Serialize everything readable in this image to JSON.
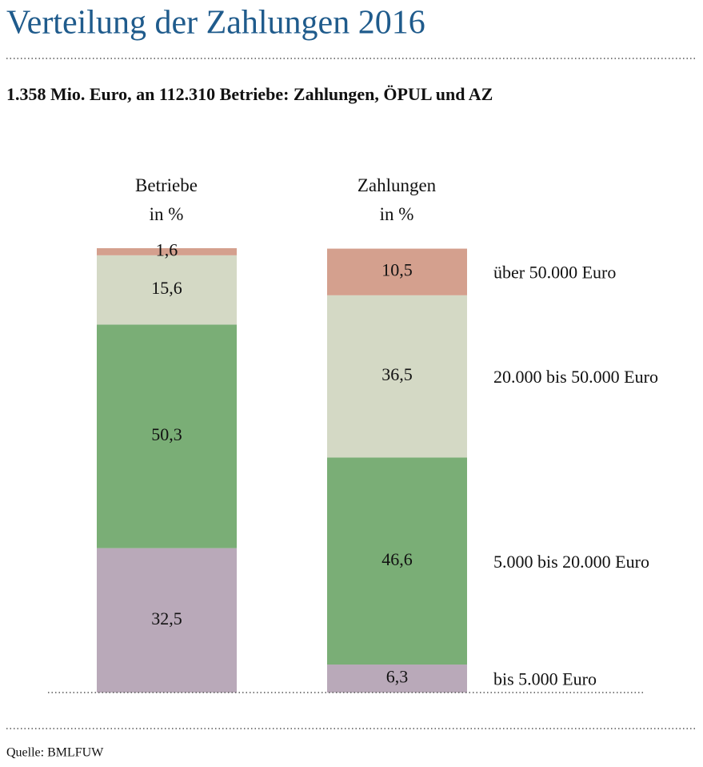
{
  "chart_data": {
    "type": "stacked-bar",
    "title": "Verteilung der Zahlungen 2016",
    "subtitle": "1.358 Mio. Euro, an 112.310 Betriebe: Zahlungen, ÖPUL und AZ",
    "source": "Quelle: BMLFUW",
    "categories": [
      "Betriebe\nin %",
      "Zahlungen\nin %"
    ],
    "ylim": [
      0,
      100
    ],
    "series": [
      {
        "name": "bis 5.000 Euro",
        "color": "#b9a9b9",
        "values": [
          32.5,
          6.3
        ],
        "value_labels": [
          "32,5",
          "6,3"
        ]
      },
      {
        "name": "5.000 bis 20.000 Euro",
        "color": "#7aae76",
        "values": [
          50.3,
          46.6
        ],
        "value_labels": [
          "50,3",
          "46,6"
        ]
      },
      {
        "name": "20.000 bis 50.000 Euro",
        "color": "#d4d9c5",
        "values": [
          15.6,
          36.5
        ],
        "value_labels": [
          "15,6",
          "36,5"
        ]
      },
      {
        "name": "über 50.000 Euro",
        "color": "#d4a08e",
        "values": [
          1.6,
          10.5
        ],
        "value_labels": [
          "1,6",
          "10,5"
        ]
      }
    ]
  }
}
